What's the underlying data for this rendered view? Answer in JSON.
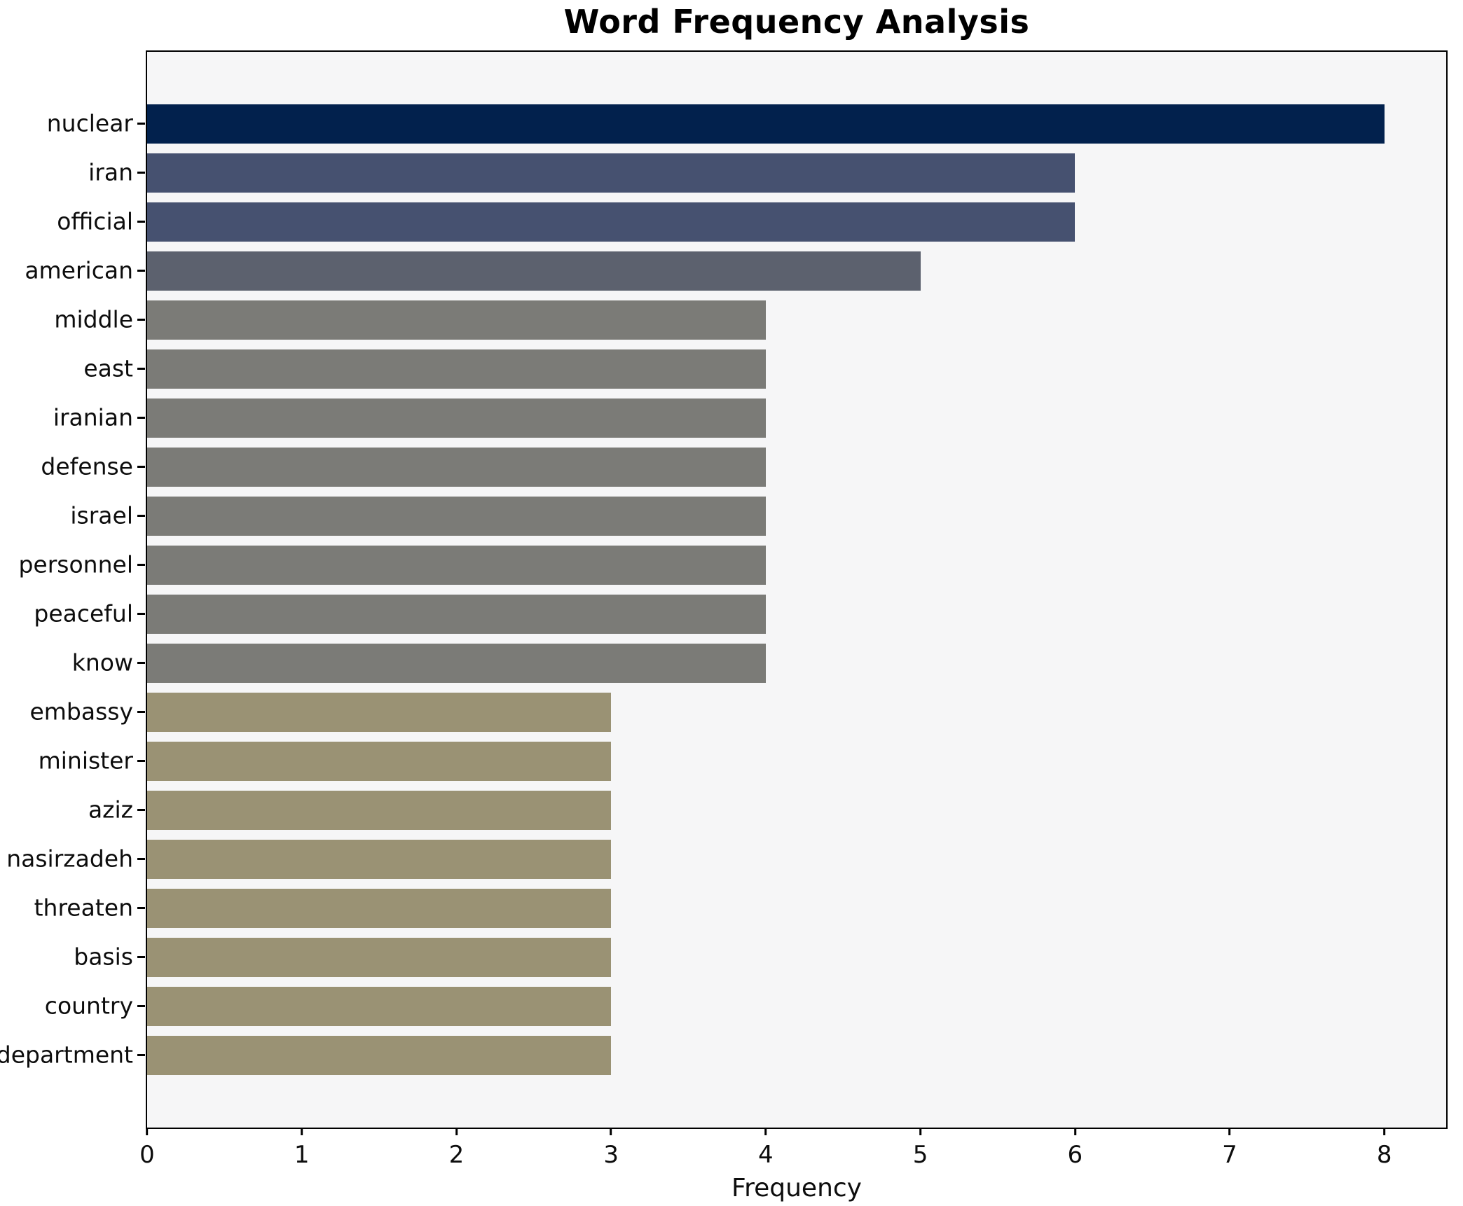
{
  "chart_data": {
    "type": "bar",
    "orientation": "horizontal",
    "title": "Word Frequency Analysis",
    "xlabel": "Frequency",
    "ylabel": "",
    "categories": [
      "nuclear",
      "iran",
      "official",
      "american",
      "middle",
      "east",
      "iranian",
      "defense",
      "israel",
      "personnel",
      "peaceful",
      "know",
      "embassy",
      "minister",
      "aziz",
      "nasirzadeh",
      "threaten",
      "basis",
      "country",
      "department"
    ],
    "values": [
      8,
      6,
      6,
      5,
      4,
      4,
      4,
      4,
      4,
      4,
      4,
      4,
      3,
      3,
      3,
      3,
      3,
      3,
      3,
      3
    ],
    "xticks": [
      0,
      1,
      2,
      3,
      4,
      5,
      6,
      7,
      8
    ],
    "xlim": [
      0,
      8.4
    ],
    "grid": false,
    "legend": null,
    "bar_colors_by_value": {
      "8": "#02214d",
      "6": "#465170",
      "5": "#5c616e",
      "4": "#7b7b77",
      "3": "#9a9274"
    },
    "plot_background": "#f6f6f7",
    "figure_background": "#ffffff",
    "spine_color": "#000000"
  }
}
